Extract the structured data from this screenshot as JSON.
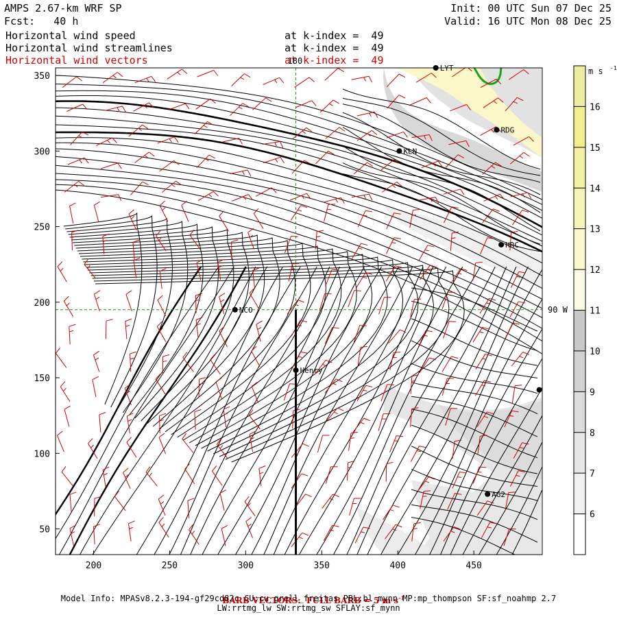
{
  "header": {
    "model": "AMPS 2.67-km WRF SP",
    "fcst": "Fcst:   40 h",
    "init": "Init: 00 UTC Sun 07 Dec 25",
    "valid": "Valid: 16 UTC Mon 08 Dec 25",
    "fields": [
      {
        "name": "Horizontal wind speed",
        "level": "at k-index =  49",
        "color": "#000000"
      },
      {
        "name": "Horizontal wind streamlines",
        "level": "at k-index =  49",
        "color": "#000000"
      },
      {
        "name": "Horizontal wind vectors",
        "level": "at k-index =  49",
        "color": "#d00000"
      }
    ]
  },
  "footer": {
    "barb": "BARB VECTORS:  FULL BARB = 5 m s",
    "barb_sup": "-1",
    "model_info": "Model Info: MPASv8.2.3-194-gf29cd82c CU:cu_grell_freitas PBL:bl_mynn MP:mp_thompson SF:sf_noahmp 2.7",
    "model_info2": "LW:rrtmg_lw SW:rrtmg_sw SFLAY:sf_mynn"
  },
  "chart_data": {
    "type": "map",
    "xlim": [
      175,
      495
    ],
    "ylim": [
      33,
      355
    ],
    "xticks": [
      200,
      250,
      300,
      350,
      400,
      450
    ],
    "yticks": [
      50,
      100,
      150,
      200,
      250,
      300,
      350
    ],
    "meridian_label": "180",
    "parallel_label": "90 W",
    "meridian_x": 333,
    "parallel_y": 195,
    "section_line": {
      "x": 333,
      "y": [
        33,
        195
      ]
    },
    "stations": [
      {
        "label": "NCO",
        "x": 293,
        "y": 195
      },
      {
        "label": "Henry",
        "x": 333,
        "y": 155
      },
      {
        "label": "KLN",
        "x": 401,
        "y": 300
      },
      {
        "label": "RDG",
        "x": 465,
        "y": 314
      },
      {
        "label": "HRC",
        "x": 468,
        "y": 238
      },
      {
        "label": "AG2",
        "x": 459,
        "y": 73
      },
      {
        "label": "LYT",
        "x": 425,
        "y": 355
      },
      {
        "label": "",
        "x": 493,
        "y": 142
      }
    ],
    "colorbar": {
      "units": "m s",
      "units_sup": "-1",
      "levels": [
        6,
        7,
        8,
        9,
        10,
        11,
        12,
        13,
        14,
        15,
        16
      ],
      "colors": [
        "#ffffff",
        "#f0f0f0",
        "#e6e6e6",
        "#dcdcdc",
        "#d2d2d2",
        "#c8c8c8",
        "#fbfbe4",
        "#f8f8cc",
        "#f5f5b8",
        "#f2f2a4",
        "#efef92",
        "#ececa0"
      ]
    },
    "colors": {
      "streamline": "#000000",
      "barb": "#d00000",
      "grid": "#2a8a2a",
      "coast": "#1aa01a"
    }
  }
}
